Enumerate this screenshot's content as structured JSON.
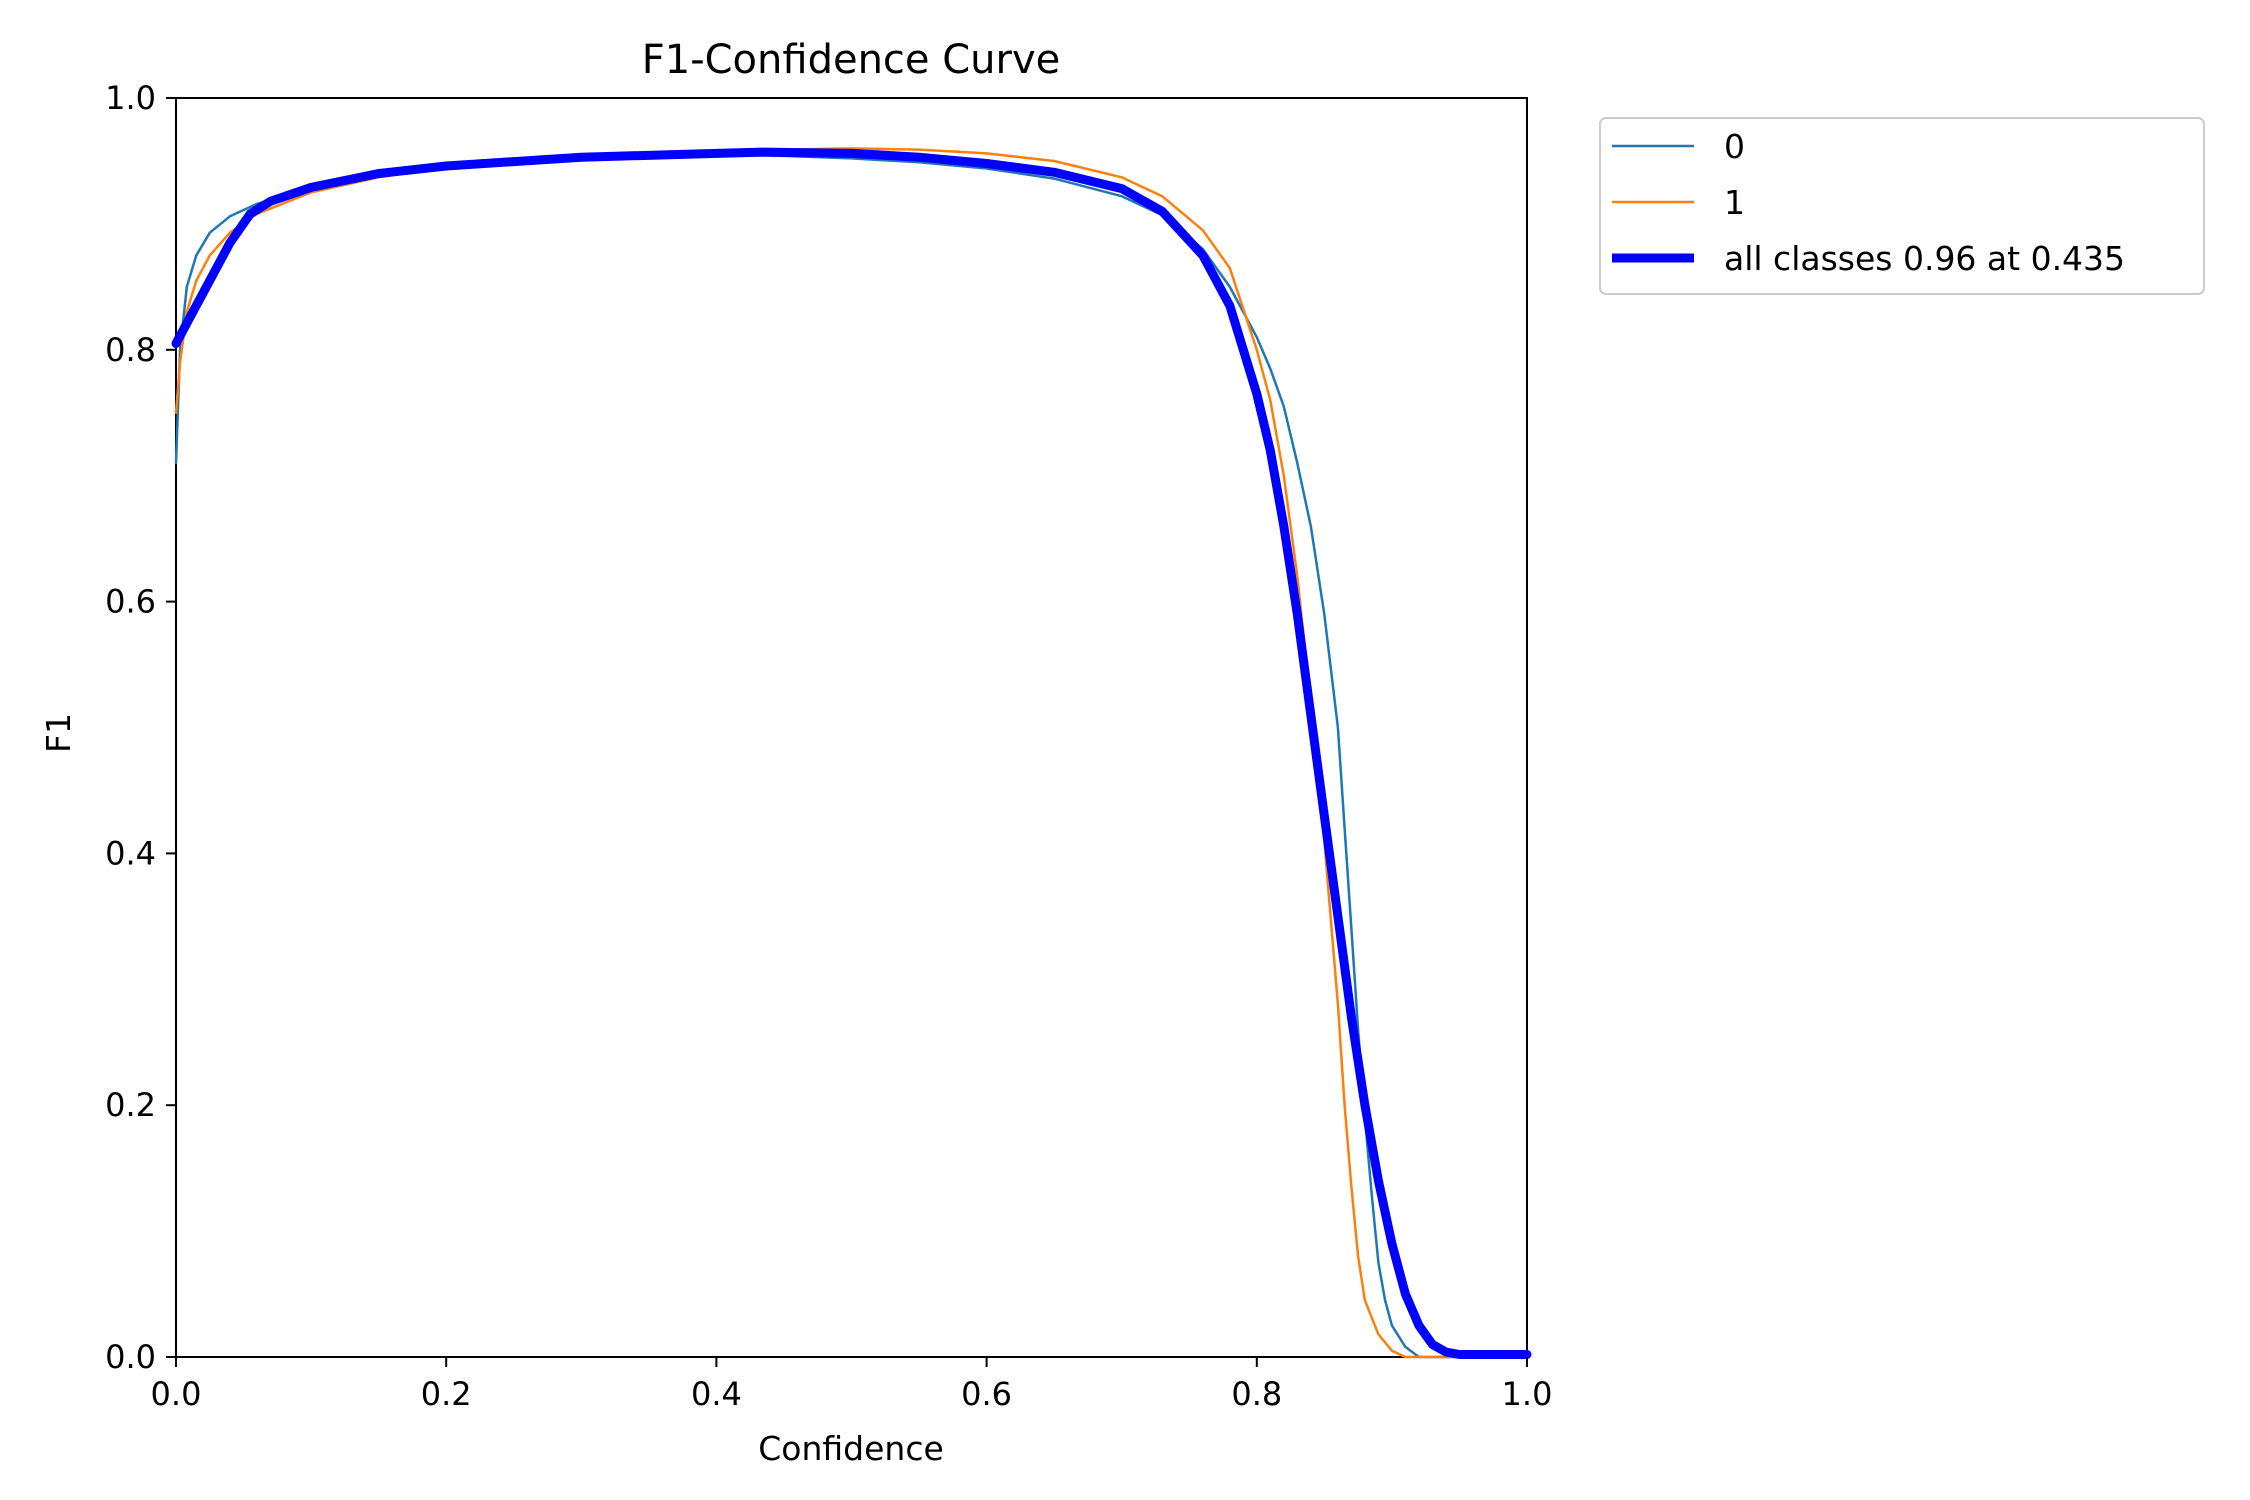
{
  "chart_data": {
    "type": "line",
    "title": "F1-Confidence Curve",
    "xlabel": "Confidence",
    "ylabel": "F1",
    "xlim": [
      0,
      1
    ],
    "ylim": [
      0,
      1
    ],
    "xticks": [
      "0.0",
      "0.2",
      "0.4",
      "0.6",
      "0.8",
      "1.0"
    ],
    "yticks": [
      "0.0",
      "0.2",
      "0.4",
      "0.6",
      "0.8",
      "1.0"
    ],
    "grid": false,
    "legend_position": "outside-upper-right",
    "series": [
      {
        "name": "0",
        "color": "#1f77b4",
        "width": "thin",
        "points": [
          [
            0.0,
            0.71
          ],
          [
            0.003,
            0.8
          ],
          [
            0.008,
            0.85
          ],
          [
            0.015,
            0.875
          ],
          [
            0.025,
            0.893
          ],
          [
            0.04,
            0.906
          ],
          [
            0.06,
            0.916
          ],
          [
            0.1,
            0.928
          ],
          [
            0.15,
            0.938
          ],
          [
            0.2,
            0.944
          ],
          [
            0.3,
            0.951
          ],
          [
            0.4,
            0.955
          ],
          [
            0.45,
            0.954
          ],
          [
            0.5,
            0.952
          ],
          [
            0.55,
            0.949
          ],
          [
            0.6,
            0.944
          ],
          [
            0.65,
            0.936
          ],
          [
            0.7,
            0.922
          ],
          [
            0.73,
            0.907
          ],
          [
            0.76,
            0.88
          ],
          [
            0.78,
            0.85
          ],
          [
            0.8,
            0.81
          ],
          [
            0.81,
            0.785
          ],
          [
            0.82,
            0.755
          ],
          [
            0.83,
            0.71
          ],
          [
            0.84,
            0.66
          ],
          [
            0.85,
            0.59
          ],
          [
            0.86,
            0.5
          ],
          [
            0.865,
            0.42
          ],
          [
            0.87,
            0.34
          ],
          [
            0.875,
            0.26
          ],
          [
            0.88,
            0.19
          ],
          [
            0.885,
            0.13
          ],
          [
            0.89,
            0.075
          ],
          [
            0.895,
            0.045
          ],
          [
            0.9,
            0.025
          ],
          [
            0.91,
            0.008
          ],
          [
            0.92,
            0.0
          ],
          [
            1.0,
            0.0
          ]
        ]
      },
      {
        "name": "1",
        "color": "#ff7f0e",
        "width": "thin",
        "points": [
          [
            0.0,
            0.75
          ],
          [
            0.003,
            0.79
          ],
          [
            0.008,
            0.83
          ],
          [
            0.015,
            0.855
          ],
          [
            0.025,
            0.875
          ],
          [
            0.04,
            0.893
          ],
          [
            0.06,
            0.908
          ],
          [
            0.1,
            0.925
          ],
          [
            0.15,
            0.937
          ],
          [
            0.2,
            0.945
          ],
          [
            0.3,
            0.953
          ],
          [
            0.4,
            0.958
          ],
          [
            0.45,
            0.959
          ],
          [
            0.5,
            0.96
          ],
          [
            0.55,
            0.959
          ],
          [
            0.6,
            0.956
          ],
          [
            0.65,
            0.95
          ],
          [
            0.7,
            0.937
          ],
          [
            0.73,
            0.922
          ],
          [
            0.76,
            0.895
          ],
          [
            0.78,
            0.865
          ],
          [
            0.8,
            0.8
          ],
          [
            0.81,
            0.76
          ],
          [
            0.82,
            0.7
          ],
          [
            0.83,
            0.62
          ],
          [
            0.84,
            0.52
          ],
          [
            0.85,
            0.41
          ],
          [
            0.86,
            0.28
          ],
          [
            0.865,
            0.2
          ],
          [
            0.87,
            0.135
          ],
          [
            0.875,
            0.08
          ],
          [
            0.88,
            0.045
          ],
          [
            0.89,
            0.018
          ],
          [
            0.9,
            0.005
          ],
          [
            0.91,
            0.0
          ],
          [
            1.0,
            0.0
          ]
        ]
      },
      {
        "name": "all classes 0.96 at 0.435",
        "color": "#0000ff",
        "width": "thick",
        "points": [
          [
            0.0,
            0.805
          ],
          [
            0.01,
            0.825
          ],
          [
            0.02,
            0.845
          ],
          [
            0.03,
            0.865
          ],
          [
            0.04,
            0.885
          ],
          [
            0.055,
            0.908
          ],
          [
            0.07,
            0.918
          ],
          [
            0.1,
            0.929
          ],
          [
            0.15,
            0.94
          ],
          [
            0.2,
            0.946
          ],
          [
            0.3,
            0.953
          ],
          [
            0.4,
            0.956
          ],
          [
            0.435,
            0.957
          ],
          [
            0.5,
            0.956
          ],
          [
            0.55,
            0.953
          ],
          [
            0.6,
            0.948
          ],
          [
            0.65,
            0.941
          ],
          [
            0.7,
            0.928
          ],
          [
            0.73,
            0.91
          ],
          [
            0.76,
            0.875
          ],
          [
            0.78,
            0.835
          ],
          [
            0.8,
            0.765
          ],
          [
            0.81,
            0.72
          ],
          [
            0.82,
            0.66
          ],
          [
            0.83,
            0.59
          ],
          [
            0.84,
            0.51
          ],
          [
            0.85,
            0.43
          ],
          [
            0.86,
            0.35
          ],
          [
            0.87,
            0.27
          ],
          [
            0.88,
            0.2
          ],
          [
            0.89,
            0.14
          ],
          [
            0.9,
            0.09
          ],
          [
            0.91,
            0.05
          ],
          [
            0.92,
            0.025
          ],
          [
            0.93,
            0.01
          ],
          [
            0.94,
            0.004
          ],
          [
            0.95,
            0.002
          ],
          [
            1.0,
            0.002
          ]
        ]
      }
    ]
  }
}
